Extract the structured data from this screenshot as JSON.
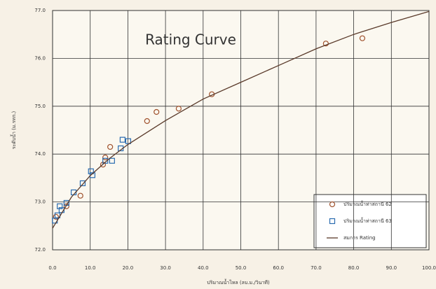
{
  "chart_data": {
    "type": "scatter",
    "title": "Rating Curve",
    "x_label": "ปริมาณน้ำไหล (ลบ.ม./วินาที)",
    "y_label": "ระดับน้ำ (ม.รทก.)",
    "xlim": [
      0,
      100
    ],
    "ylim": [
      72,
      77
    ],
    "xticks": [
      {
        "value": 0,
        "label": "0.0"
      },
      {
        "value": 10,
        "label": "10.0"
      },
      {
        "value": 20,
        "label": "20.0"
      },
      {
        "value": 30,
        "label": "30.0"
      },
      {
        "value": 40,
        "label": "40.0"
      },
      {
        "value": 50,
        "label": "50.0"
      },
      {
        "value": 60,
        "label": "60.0"
      },
      {
        "value": 70,
        "label": "70.0"
      },
      {
        "value": 80,
        "label": "80.0"
      },
      {
        "value": 90,
        "label": "90.0"
      },
      {
        "value": 100,
        "label": "100.0"
      }
    ],
    "yticks": [
      {
        "value": 72,
        "label": "72.0"
      },
      {
        "value": 73,
        "label": "73.0"
      },
      {
        "value": 74,
        "label": "74.0"
      },
      {
        "value": 75,
        "label": "75.0"
      },
      {
        "value": 76,
        "label": "76.0"
      },
      {
        "value": 77,
        "label": "77.0"
      }
    ],
    "grid": true,
    "legend": "bottom-right",
    "series": [
      {
        "name": "ปริมาณน้ำท่าสถานี 62",
        "color": "#a0522d",
        "marker": "circle",
        "x": [
          72.6,
          82.3,
          42.3,
          33.5,
          27.6,
          25.1,
          15.3,
          14.0,
          13.4,
          7.4,
          3.7,
          0.9
        ],
        "values": [
          76.31,
          76.42,
          75.25,
          74.95,
          74.88,
          74.69,
          74.15,
          73.93,
          73.78,
          73.13,
          72.91,
          72.69
        ]
      },
      {
        "name": "ปริมาณน้ำท่าสถานี 63",
        "color": "#2b6cb0",
        "marker": "square",
        "x": [
          18.6,
          20.1,
          18.1,
          15.8,
          14.0,
          10.2,
          10.6,
          8.0,
          5.6,
          3.7,
          2.4,
          1.3,
          0.6,
          1.9
        ],
        "values": [
          74.3,
          74.27,
          74.12,
          73.86,
          73.86,
          73.64,
          73.56,
          73.39,
          73.2,
          72.98,
          72.83,
          72.72,
          72.61,
          72.91
        ]
      },
      {
        "name": "สมการ Rating",
        "color": "#5a3a2a",
        "marker": "line",
        "x": [
          0,
          5,
          10,
          15,
          20,
          25,
          30,
          40,
          50,
          60,
          70,
          80,
          90,
          100
        ],
        "values": [
          72.45,
          73.1,
          73.55,
          73.9,
          74.2,
          74.45,
          74.7,
          75.15,
          75.5,
          75.85,
          76.2,
          76.5,
          76.75,
          76.98
        ]
      }
    ]
  }
}
